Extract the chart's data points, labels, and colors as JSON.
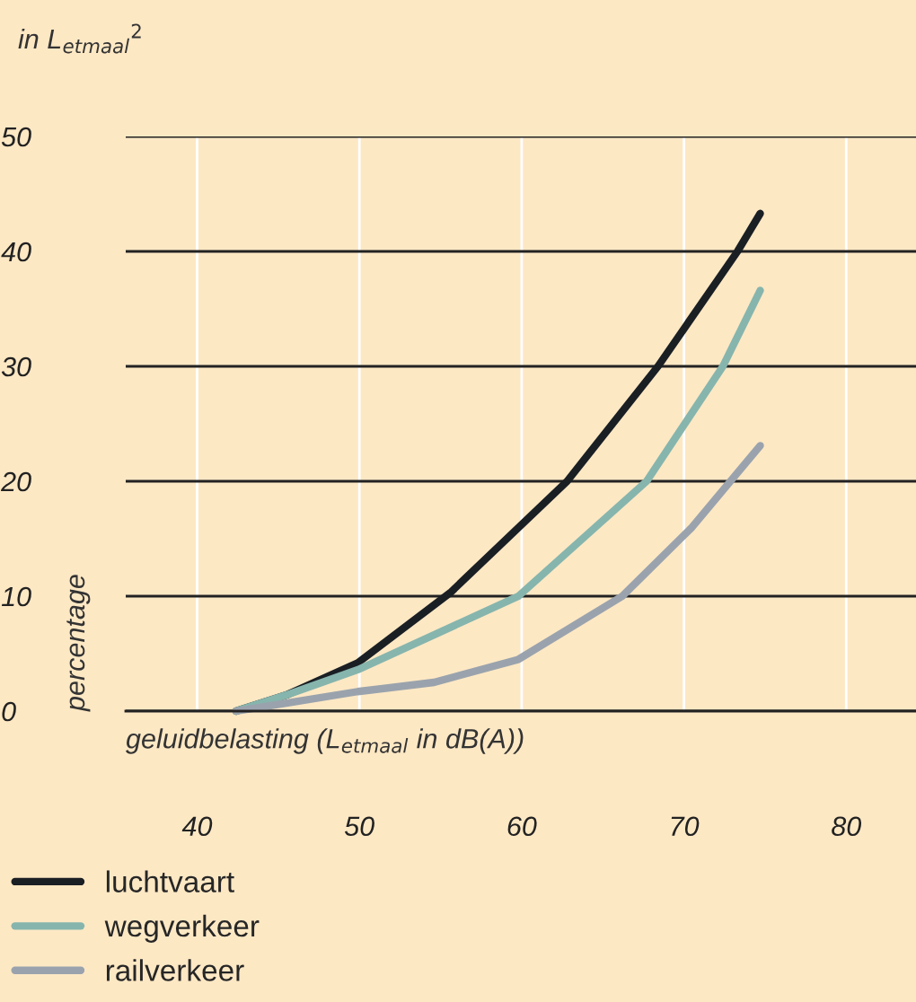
{
  "chart_data": {
    "type": "line",
    "title": "in L$_{etmaal}$$^{2}$",
    "ylabel": "percentage",
    "xlabel": "geluidbelasting (L$_{etmaal}$ in dB(A))",
    "xlim": [
      35.6,
      84.3
    ],
    "xticks": [
      40,
      50,
      60,
      70,
      80
    ],
    "ylim": [
      0,
      50
    ],
    "yticks": [
      0,
      10,
      20,
      30,
      40,
      50
    ],
    "grid": true,
    "legend": "bottom",
    "marker": "none",
    "line_style": "solid",
    "series": [
      {
        "name": "luchtvaart",
        "color": "#1a1f24",
        "x": [
          42.4,
          45.5,
          49.9,
          55.6,
          62.8,
          68.4,
          73.3,
          74.7
        ],
        "values": [
          0,
          1.4,
          4.2,
          10.3,
          20,
          30,
          40,
          43.3
        ]
      },
      {
        "name": "wegverkeer",
        "color": "#86b5ad",
        "x": [
          42.4,
          45.5,
          49.9,
          59.8,
          67.7,
          72.4,
          74.7
        ],
        "values": [
          0,
          1.4,
          3.6,
          10,
          20,
          30,
          36.6
        ]
      },
      {
        "name": "railverkeer",
        "color": "#9aa3ad",
        "x": [
          42.4,
          45.5,
          49.9,
          54.6,
          59.8,
          66.2,
          70.5,
          74.7
        ],
        "values": [
          0,
          0.7,
          1.7,
          2.5,
          4.5,
          10,
          16,
          23.1
        ]
      }
    ]
  }
}
